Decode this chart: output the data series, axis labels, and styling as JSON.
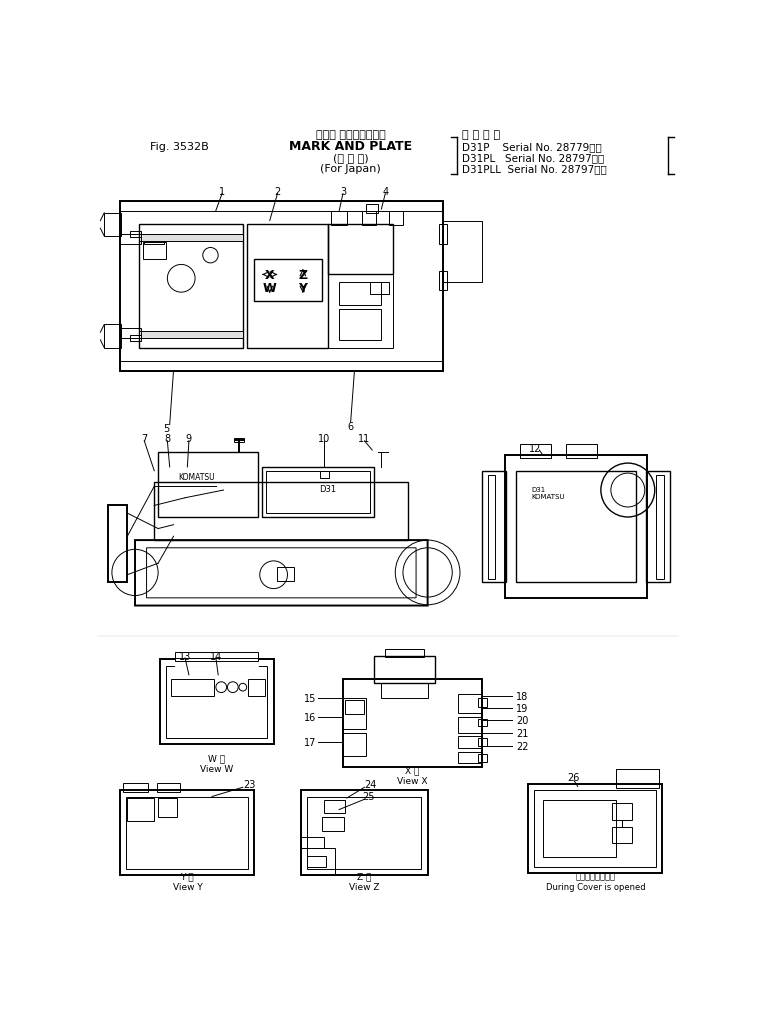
{
  "bg_color": "#ffffff",
  "fig_label": "Fig. 3532B",
  "title_jp": "マーク およびプレート",
  "title_en": "MARK AND PLATE",
  "title_jp2": "(国 内 向)",
  "title_en2": "(For Japan)",
  "applic_header": "適 用 号 機",
  "applic_lines": [
    "D31P    Serial No. 28779～）",
    "D31PL   Serial No. 28797～）",
    "D31PLL  Serial No. 28797～）"
  ]
}
